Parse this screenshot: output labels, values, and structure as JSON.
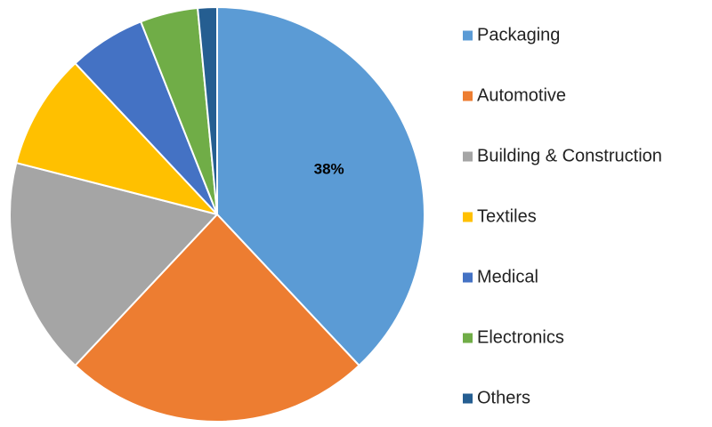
{
  "chart_data": {
    "type": "pie",
    "categories": [
      "Packaging",
      "Automotive",
      "Building & Construction",
      "Textiles",
      "Medical",
      "Electronics",
      "Others"
    ],
    "values": [
      38,
      24,
      17,
      9,
      6,
      4.5,
      1.5
    ],
    "colors": [
      "#5B9BD5",
      "#ED7D31",
      "#A5A5A5",
      "#FFC000",
      "#4472C4",
      "#70AD47",
      "#255E91"
    ],
    "data_labels": [
      "38%",
      "",
      "",
      "",
      "",
      "",
      ""
    ],
    "legend_position": "right",
    "start_angle_deg": 0,
    "direction": "clockwise"
  }
}
